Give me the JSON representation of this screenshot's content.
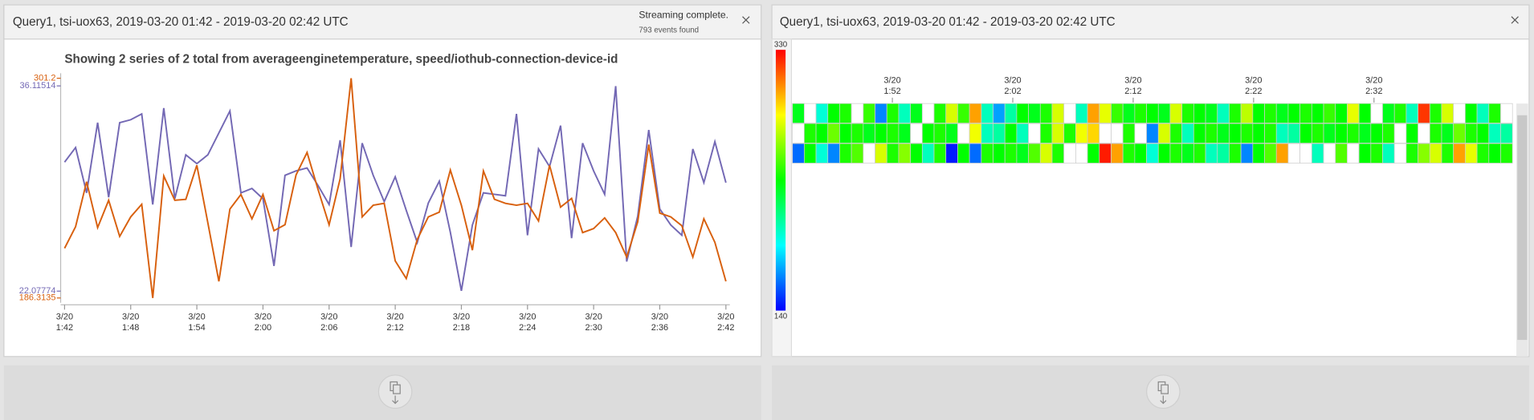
{
  "panels": [
    {
      "header": "Query1, tsi-uox63, 2019-03-20 01:42  -  2019-03-20 02:42 UTC",
      "status": "Streaming complete.",
      "events": "793 events found"
    },
    {
      "header": "Query1, tsi-uox63, 2019-03-20 01:42  -  2019-03-20 02:42 UTC"
    }
  ],
  "chart_data": [
    {
      "type": "line",
      "title": "Showing 2 series of 2 total from averageenginetemperature, speed/iothub-connection-device-id",
      "x": [
        0,
        1,
        2,
        3,
        4,
        5,
        6,
        7,
        8,
        9,
        10,
        11,
        12,
        13,
        14,
        15,
        16,
        17,
        18,
        19,
        20,
        21,
        22,
        23,
        24,
        25,
        26,
        27,
        28,
        29,
        30,
        31,
        32,
        33,
        34,
        35,
        36,
        37,
        38,
        39,
        40,
        41,
        42,
        43,
        44,
        45,
        46,
        47,
        48,
        49,
        50,
        51,
        52,
        53,
        54,
        55,
        56,
        57,
        58,
        59,
        60
      ],
      "xlim": [
        0,
        60
      ],
      "xticks": [
        {
          "value": 0,
          "label": "3/20\n1:42"
        },
        {
          "value": 6,
          "label": "3/20\n1:48"
        },
        {
          "value": 12,
          "label": "3/20\n1:54"
        },
        {
          "value": 18,
          "label": "3/20\n2:00"
        },
        {
          "value": 24,
          "label": "3/20\n2:06"
        },
        {
          "value": 30,
          "label": "3/20\n2:12"
        },
        {
          "value": 36,
          "label": "3/20\n2:18"
        },
        {
          "value": 42,
          "label": "3/20\n2:24"
        },
        {
          "value": 48,
          "label": "3/20\n2:30"
        },
        {
          "value": 54,
          "label": "3/20\n2:36"
        },
        {
          "value": 60,
          "label": "3/20\n2:42"
        }
      ],
      "ylim": [
        21.28,
        36.98
      ],
      "yticks": [
        22.07774,
        36.11514
      ],
      "y2lim": [
        183.8,
        303.8
      ],
      "y2ticks": [
        186.3135,
        301.2
      ],
      "series": [
        {
          "color": "#7368b4",
          "values": [
            30.9,
            31.9,
            28.8,
            33.6,
            28.5,
            33.6,
            33.8,
            34.2,
            28.0,
            34.6,
            28.4,
            31.4,
            30.8,
            31.4,
            32.9,
            34.4,
            28.8,
            29.1,
            28.4,
            23.8,
            30.0,
            30.3,
            30.5,
            29.3,
            28.0,
            32.4,
            25.1,
            32.2,
            30.0,
            28.2,
            29.9,
            27.6,
            25.4,
            28.1,
            29.6,
            26.1,
            22.1,
            26.6,
            28.8,
            28.7,
            28.6,
            34.2,
            25.9,
            31.8,
            30.6,
            33.4,
            25.7,
            32.2,
            30.3,
            28.7,
            36.1,
            24.1,
            27.2,
            33.1,
            27.7,
            26.6,
            25.9,
            31.8,
            29.5,
            32.3,
            29.5
          ]
        },
        {
          "color": "#d8600e",
          "axis": "y2",
          "values": [
            212.3,
            223.6,
            247.1,
            223.1,
            237.4,
            218.5,
            228.7,
            235.3,
            186.3,
            250.1,
            237.4,
            237.9,
            255.7,
            225.6,
            195.0,
            232.8,
            240.4,
            227.7,
            240.4,
            221.5,
            224.6,
            250.6,
            262.4,
            243.0,
            224.6,
            248.6,
            301.2,
            228.7,
            234.8,
            235.8,
            205.7,
            196.5,
            216.9,
            228.7,
            231.2,
            253.2,
            234.8,
            211.3,
            252.7,
            237.9,
            235.8,
            234.8,
            235.8,
            226.6,
            255.7,
            233.8,
            238.4,
            220.5,
            222.6,
            228.2,
            220.5,
            207.7,
            226.1,
            266.5,
            230.7,
            228.7,
            224.1,
            207.7,
            227.7,
            215.4,
            195.0
          ]
        }
      ]
    },
    {
      "type": "heatmap",
      "xlim": [
        1.7,
        61.5
      ],
      "xticks": [
        {
          "value": 10,
          "label": "3/20\n1:52"
        },
        {
          "value": 20,
          "label": "3/20\n2:02"
        },
        {
          "value": 30,
          "label": "3/20\n2:12"
        },
        {
          "value": 40,
          "label": "3/20\n2:22"
        },
        {
          "value": 50,
          "label": "3/20\n2:32"
        }
      ],
      "zlim": [
        140,
        330
      ],
      "zticks": [
        140,
        330
      ],
      "series": [
        {
          "values": [
            230,
            null,
            195,
            235,
            240,
            null,
            245,
            165,
            240,
            200,
            230,
            null,
            240,
            275,
            245,
            300,
            200,
            170,
            205,
            235,
            230,
            240,
            275,
            null,
            200,
            300,
            278,
            245,
            230,
            240,
            235,
            230,
            275,
            240,
            235,
            230,
            200,
            240,
            270,
            235,
            240,
            230,
            235,
            240,
            235,
            245,
            235,
            278,
            235,
            null,
            230,
            240,
            200,
            320,
            240,
            275,
            null,
            235,
            200,
            240,
            null
          ]
        },
        {
          "values": [
            null,
            240,
            235,
            255,
            235,
            240,
            230,
            235,
            240,
            230,
            null,
            235,
            240,
            230,
            null,
            280,
            200,
            205,
            235,
            200,
            null,
            240,
            275,
            240,
            280,
            290,
            null,
            null,
            240,
            null,
            165,
            275,
            240,
            200,
            235,
            240,
            230,
            235,
            240,
            235,
            240,
            200,
            205,
            235,
            240,
            230,
            235,
            240,
            230,
            235,
            240,
            null,
            235,
            null,
            240,
            230,
            255,
            240,
            235,
            200,
            205
          ]
        },
        {
          "values": [
            160,
            235,
            195,
            165,
            240,
            250,
            null,
            275,
            240,
            260,
            235,
            200,
            240,
            145,
            235,
            160,
            240,
            235,
            240,
            230,
            250,
            275,
            240,
            null,
            null,
            235,
            325,
            300,
            240,
            235,
            195,
            235,
            240,
            230,
            240,
            200,
            205,
            240,
            165,
            235,
            250,
            300,
            null,
            null,
            200,
            null,
            250,
            null,
            235,
            240,
            200,
            null,
            240,
            260,
            275,
            240,
            300,
            278,
            240,
            235,
            240
          ]
        }
      ]
    }
  ]
}
